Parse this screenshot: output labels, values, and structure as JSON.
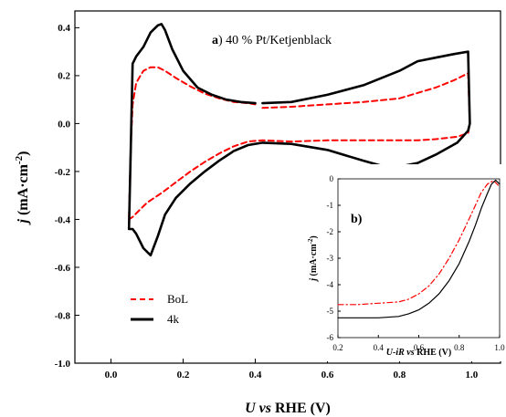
{
  "chart_data": [
    {
      "type": "line",
      "panel_label": "a",
      "title": "40 % Pt/Ketjenblack",
      "xlabel_parts": {
        "u": "U",
        "vs": " vs ",
        "rest": "RHE (V)"
      },
      "ylabel_parts": {
        "j": "j",
        "rest": " (mA·cm",
        "sup": "-2",
        "close": ")"
      },
      "xlim": [
        -0.1,
        1.08
      ],
      "ylim": [
        -1.0,
        0.47
      ],
      "xticks": [
        "0.0",
        "0.2",
        "0.4",
        "0.6",
        "0.8",
        "1.0"
      ],
      "yticks": [
        "0.4",
        "0.2",
        "0.0",
        "-0.2",
        "-0.4",
        "-0.6",
        "-0.8",
        "-1.0"
      ],
      "legend": [
        "BoL",
        "4k"
      ],
      "series": [
        {
          "name": "BoL",
          "color": "#ff0000",
          "dash": "dashed",
          "x": [
            0.05,
            0.055,
            0.06,
            0.07,
            0.09,
            0.11,
            0.13,
            0.15,
            0.18,
            0.22,
            0.26,
            0.3,
            0.34,
            0.38,
            0.4,
            null,
            0.42,
            0.5,
            0.6,
            0.7,
            0.8,
            0.9,
            0.95,
            0.99,
            0.995,
            0.99,
            0.96,
            0.9,
            0.85,
            0.8,
            0.7,
            0.6,
            0.5,
            0.42,
            0.38,
            0.34,
            0.3,
            0.26,
            0.22,
            0.18,
            0.14,
            0.1,
            0.08,
            0.06,
            0.05
          ],
          "y": [
            -0.39,
            -0.1,
            0.08,
            0.17,
            0.22,
            0.235,
            0.235,
            0.22,
            0.19,
            0.155,
            0.125,
            0.105,
            0.09,
            0.085,
            0.08,
            null,
            0.065,
            0.07,
            0.08,
            0.09,
            0.105,
            0.15,
            0.18,
            0.21,
            0.0,
            -0.04,
            -0.055,
            -0.065,
            -0.07,
            -0.07,
            -0.07,
            -0.07,
            -0.075,
            -0.07,
            -0.075,
            -0.095,
            -0.125,
            -0.16,
            -0.2,
            -0.245,
            -0.29,
            -0.33,
            -0.36,
            -0.39,
            -0.4
          ]
        },
        {
          "name": "4k",
          "color": "#000000",
          "dash": "solid",
          "x": [
            0.05,
            0.055,
            0.06,
            0.07,
            0.09,
            0.11,
            0.13,
            0.14,
            0.15,
            0.17,
            0.2,
            0.24,
            0.28,
            0.32,
            0.36,
            0.4,
            null,
            0.42,
            0.5,
            0.6,
            0.7,
            0.8,
            0.85,
            0.9,
            0.95,
            0.99,
            0.995,
            0.99,
            0.96,
            0.9,
            0.85,
            0.8,
            0.76,
            0.7,
            0.6,
            0.5,
            0.42,
            0.38,
            0.34,
            0.3,
            0.26,
            0.22,
            0.18,
            0.15,
            0.13,
            0.11,
            0.09,
            0.07,
            0.06,
            0.05
          ],
          "y": [
            -0.44,
            -0.1,
            0.25,
            0.28,
            0.32,
            0.38,
            0.41,
            0.415,
            0.39,
            0.31,
            0.22,
            0.15,
            0.12,
            0.1,
            0.09,
            0.085,
            null,
            0.085,
            0.09,
            0.12,
            0.16,
            0.22,
            0.26,
            0.275,
            0.29,
            0.3,
            0.0,
            -0.03,
            -0.08,
            -0.13,
            -0.165,
            -0.18,
            -0.18,
            -0.155,
            -0.11,
            -0.085,
            -0.08,
            -0.09,
            -0.115,
            -0.155,
            -0.2,
            -0.25,
            -0.31,
            -0.38,
            -0.47,
            -0.55,
            -0.52,
            -0.46,
            -0.44,
            -0.44
          ]
        }
      ]
    },
    {
      "type": "line",
      "panel_label": "b",
      "xlabel_parts": {
        "u": "U-iR",
        "vs": " vs ",
        "rest": "RHE (V)"
      },
      "ylabel_parts": {
        "j": "j",
        "rest": " (mA·cm",
        "sup": "-2",
        "close": ")"
      },
      "xlim": [
        0.2,
        1.0
      ],
      "ylim": [
        -6.0,
        0.0
      ],
      "xticks": [
        "0.2",
        "0.4",
        "0.6",
        "0.8",
        "1.0"
      ],
      "yticks": [
        "0",
        "-1",
        "-2",
        "-3",
        "-4",
        "-5",
        "-6"
      ],
      "series": [
        {
          "name": "BoL",
          "color": "#ff0000",
          "dash": "dashdot",
          "x": [
            0.2,
            0.3,
            0.4,
            0.5,
            0.55,
            0.6,
            0.65,
            0.7,
            0.75,
            0.8,
            0.85,
            0.88,
            0.91,
            0.94,
            0.97,
            1.0
          ],
          "y": [
            -4.75,
            -4.75,
            -4.7,
            -4.65,
            -4.55,
            -4.35,
            -4.05,
            -3.6,
            -3.0,
            -2.3,
            -1.5,
            -1.0,
            -0.5,
            -0.2,
            -0.06,
            -0.3
          ]
        },
        {
          "name": "4k",
          "color": "#000000",
          "dash": "solid",
          "x": [
            0.2,
            0.3,
            0.4,
            0.5,
            0.55,
            0.6,
            0.65,
            0.7,
            0.75,
            0.8,
            0.85,
            0.88,
            0.91,
            0.94,
            0.96,
            0.98,
            1.0
          ],
          "y": [
            -5.25,
            -5.25,
            -5.25,
            -5.2,
            -5.1,
            -4.95,
            -4.7,
            -4.35,
            -3.85,
            -3.2,
            -2.35,
            -1.75,
            -1.1,
            -0.55,
            -0.2,
            -0.05,
            -0.2
          ]
        }
      ]
    }
  ]
}
